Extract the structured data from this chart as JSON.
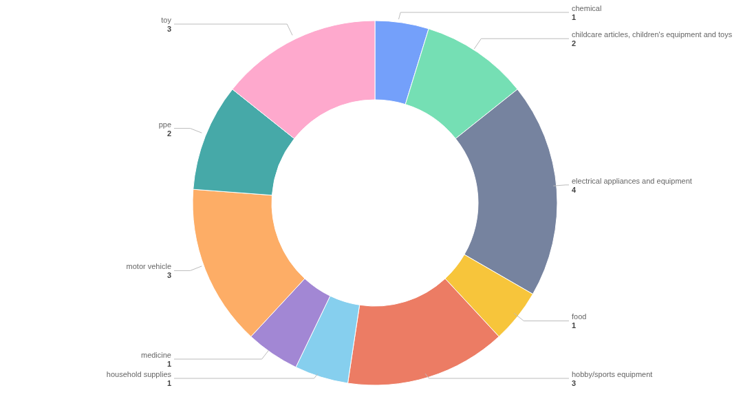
{
  "chart_data": {
    "type": "donut",
    "categories": [
      "chemical",
      "childcare articles, children's equipment and toys",
      "electrical appliances and equipment",
      "food",
      "hobby/sports equipment",
      "household supplies",
      "medicine",
      "motor vehicle",
      "ppe",
      "toy"
    ],
    "values": [
      1,
      2,
      4,
      1,
      3,
      1,
      1,
      3,
      2,
      3
    ],
    "colors": [
      "#74a0fa",
      "#75dfb4",
      "#76839f",
      "#f7c53b",
      "#ec7c64",
      "#86cfee",
      "#a287d4",
      "#fdad66",
      "#46a9a8",
      "#fea9cd"
    ],
    "data_labels": true,
    "legend": false
  }
}
